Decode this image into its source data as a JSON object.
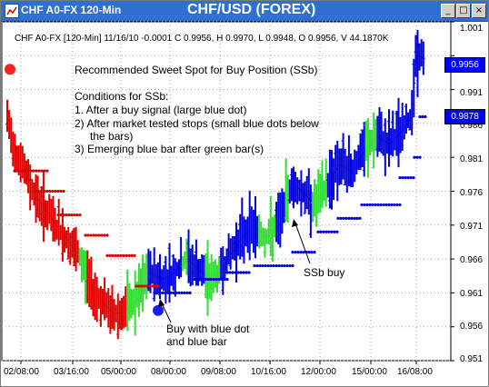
{
  "window": {
    "title": "CHF A0-FX 120-Min",
    "center_title": "CHF/USD (FOREX)",
    "buttons": [
      "_",
      "□",
      "×"
    ]
  },
  "info_line": "CHF A0-FX [120-Min] 11/16/10  -0.0001 C 0.9956, H 0.9970, L 0.9948, O 0.9956, V 44.1870K",
  "notes": {
    "line1": "Recommended Sweet Spot for Buy Position (SSb)",
    "line2": "Conditions for SSb:",
    "line3": "1. After a buy signal (large blue dot)",
    "line4": "2) After market tested stops (small blue dots below",
    "line5": "the bars)",
    "line6": "3) Emerging blue bar after green bar(s)"
  },
  "annotations": {
    "ssb_buy": "SSb buy",
    "buy_with_dot_1": "Buy with blue dot",
    "buy_with_dot_2": "and blue bar"
  },
  "price_tags": {
    "current": "0.9956",
    "stop": "0.9878"
  },
  "y_axis_labels": [
    "1.001",
    "0.996",
    "0.991",
    "0.986",
    "0.981",
    "0.976",
    "0.971",
    "0.966",
    "0.961",
    "0.956",
    "0.951"
  ],
  "x_axis_labels": [
    "02/08:00",
    "03/16:00",
    "05/00:00",
    "08/00:00",
    "09/08:00",
    "10/16:00",
    "12/00:00",
    "15/00:00",
    "16/08:00"
  ],
  "colors": {
    "bear": "#e00000",
    "bull": "#0000e0",
    "neutral": "#33dd33",
    "grid": "#a0a0a0"
  },
  "chart_data": {
    "type": "ohlc",
    "y_range": [
      0.951,
      1.001
    ],
    "phases": [
      {
        "name": "downtrend",
        "color": "red",
        "start": 0.9865,
        "end": 0.9575
      },
      {
        "name": "base",
        "color": "green",
        "start": 0.96,
        "end": 0.962
      },
      {
        "name": "uptrend",
        "color": "blue",
        "start": 0.962,
        "end": 0.9956
      }
    ],
    "large_dots": [
      {
        "color": "red",
        "price": 0.994
      },
      {
        "color": "blue",
        "price": 0.9584
      }
    ]
  }
}
